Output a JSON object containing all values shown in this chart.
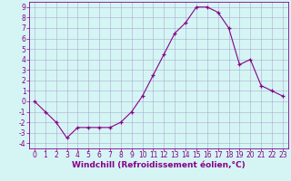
{
  "x": [
    0,
    1,
    2,
    3,
    4,
    5,
    6,
    7,
    8,
    9,
    10,
    11,
    12,
    13,
    14,
    15,
    16,
    17,
    18,
    19,
    20,
    21,
    22,
    23
  ],
  "y": [
    0.0,
    -1.0,
    -2.0,
    -3.5,
    -2.5,
    -2.5,
    -2.5,
    -2.5,
    -2.0,
    -1.0,
    0.5,
    2.5,
    4.5,
    6.5,
    7.5,
    9.0,
    9.0,
    8.5,
    7.0,
    3.5,
    4.0,
    1.5,
    1.0,
    0.5
  ],
  "line_color": "#880088",
  "marker": "+",
  "marker_color": "#880088",
  "bg_color": "#d5f5f5",
  "grid_color": "#aaaacc",
  "xlabel": "Windchill (Refroidissement éolien,°C)",
  "xlabel_fontsize": 6.5,
  "tick_fontsize": 5.5,
  "xlim": [
    -0.5,
    23.5
  ],
  "ylim": [
    -4.5,
    9.5
  ],
  "yticks": [
    -4,
    -3,
    -2,
    -1,
    0,
    1,
    2,
    3,
    4,
    5,
    6,
    7,
    8,
    9
  ],
  "xticks": [
    0,
    1,
    2,
    3,
    4,
    5,
    6,
    7,
    8,
    9,
    10,
    11,
    12,
    13,
    14,
    15,
    16,
    17,
    18,
    19,
    20,
    21,
    22,
    23
  ]
}
